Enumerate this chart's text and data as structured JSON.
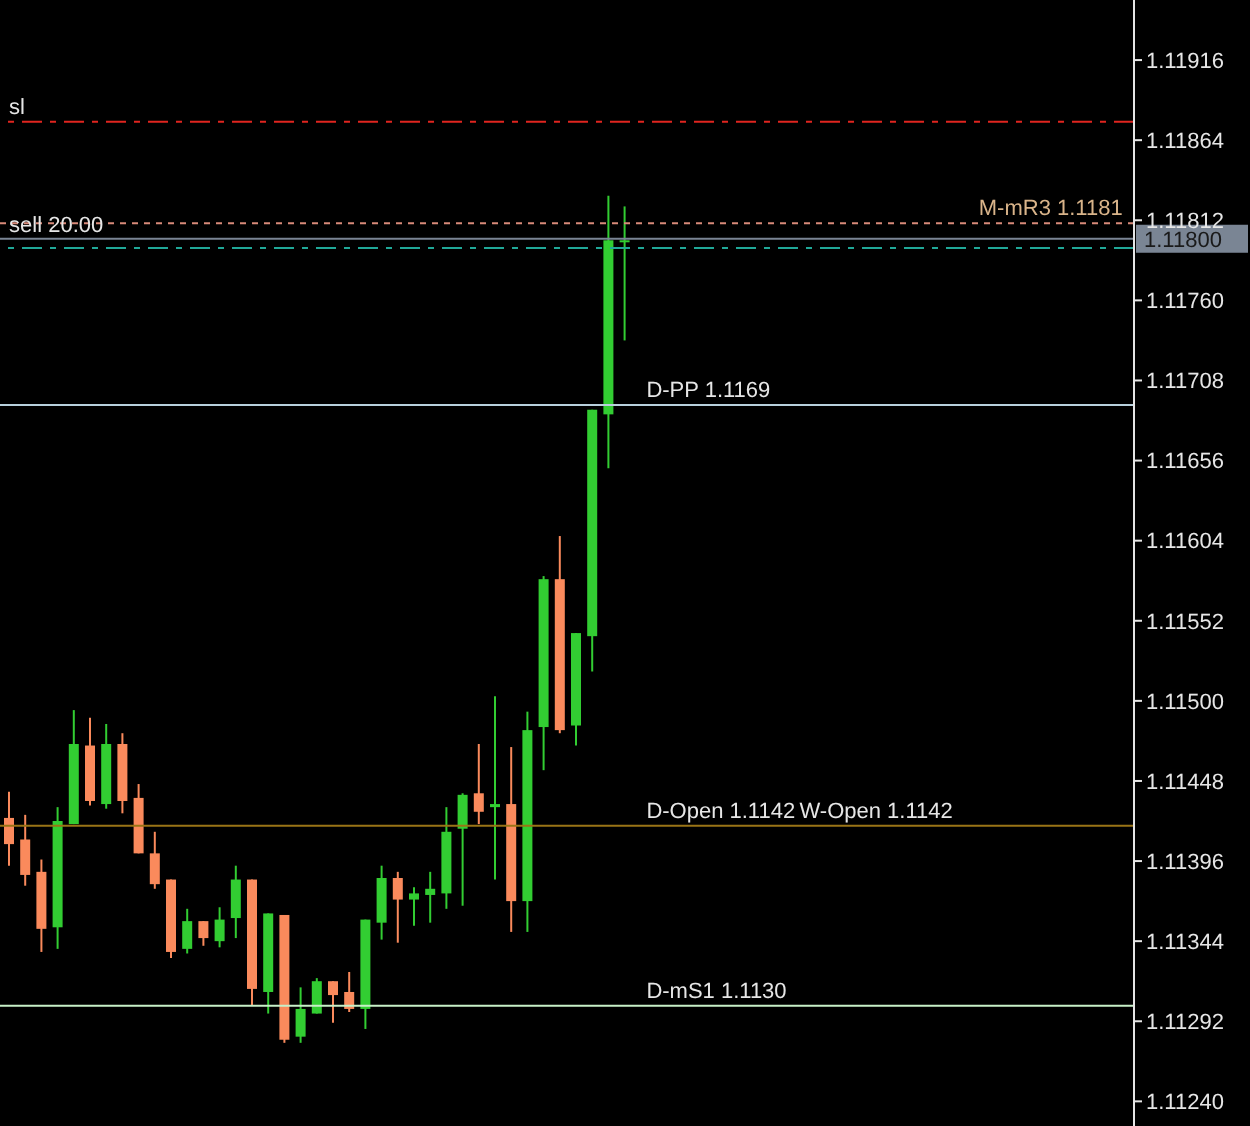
{
  "chart_data": {
    "type": "candlestick",
    "categories": [
      null,
      null,
      null,
      null,
      null,
      null,
      null,
      null,
      null,
      null,
      null,
      null,
      null,
      null,
      null,
      null,
      null,
      null,
      null,
      null,
      null,
      null,
      null,
      null,
      null,
      null,
      null,
      null,
      null,
      null,
      null,
      null,
      null,
      null,
      null,
      null,
      null,
      null,
      null,
      null,
      null,
      null,
      null,
      null,
      null,
      null,
      null,
      null,
      null,
      null,
      null,
      null,
      null,
      null,
      null,
      null,
      null,
      null,
      null,
      null,
      null,
      null,
      null,
      null,
      null,
      null,
      null,
      null,
      null,
      null
    ],
    "ohlc": [
      [
        1.11424,
        1.11441,
        1.11393,
        1.11407
      ],
      [
        1.1141,
        1.11426,
        1.1138,
        1.11387
      ],
      [
        1.11389,
        1.11397,
        1.11337,
        1.11352
      ],
      [
        1.11353,
        1.11431,
        1.11339,
        1.11422
      ],
      [
        1.1142,
        1.11494,
        1.1142,
        1.11472
      ],
      [
        1.11471,
        1.11489,
        1.11432,
        1.11435
      ],
      [
        1.11433,
        1.11485,
        1.1143,
        1.11472
      ],
      [
        1.11472,
        1.11479,
        1.11427,
        1.11435
      ],
      [
        1.11437,
        1.11446,
        1.11401,
        1.11401
      ],
      [
        1.11401,
        1.11415,
        1.11378,
        1.11381
      ],
      [
        1.11384,
        1.11384,
        1.11333,
        1.11337
      ],
      [
        1.11339,
        1.11365,
        1.11336,
        1.11357
      ],
      [
        1.11357,
        1.11357,
        1.11341,
        1.11346
      ],
      [
        1.11344,
        1.11366,
        1.1134,
        1.11358
      ],
      [
        1.11359,
        1.11393,
        1.11346,
        1.11384
      ],
      [
        1.11384,
        1.11384,
        1.11302,
        1.11313
      ],
      [
        1.11311,
        1.11362,
        1.11297,
        1.11362
      ],
      [
        1.11361,
        1.11361,
        1.11278,
        1.1128
      ],
      [
        1.11282,
        1.11314,
        1.11278,
        1.113
      ],
      [
        1.11297,
        1.1132,
        1.11297,
        1.11318
      ],
      [
        1.11318,
        1.11318,
        1.11291,
        1.11309
      ],
      [
        1.11311,
        1.11324,
        1.11298,
        1.113
      ],
      [
        1.113,
        1.11358,
        1.11287,
        1.11358
      ],
      [
        1.11356,
        1.11393,
        1.11345,
        1.11385
      ],
      [
        1.11385,
        1.11389,
        1.11343,
        1.11371
      ],
      [
        1.11371,
        1.11379,
        1.11354,
        1.11375
      ],
      [
        1.11374,
        1.11389,
        1.11356,
        1.11378
      ],
      [
        1.11375,
        1.11431,
        1.11365,
        1.11415
      ],
      [
        1.11417,
        1.1144,
        1.11367,
        1.11439
      ],
      [
        1.1144,
        1.11472,
        1.1142,
        1.11428
      ],
      [
        1.11431,
        1.11503,
        1.11384,
        1.11433
      ],
      [
        1.11433,
        1.1147,
        1.1135,
        1.1137
      ],
      [
        1.1137,
        1.11493,
        1.1135,
        1.11481
      ],
      [
        1.11483,
        1.11581,
        1.11455,
        1.11579
      ],
      [
        1.11579,
        1.11607,
        1.11479,
        1.11481
      ],
      [
        1.11484,
        1.11544,
        1.11471,
        1.11544
      ],
      [
        1.11542,
        1.11689,
        1.11519,
        1.11689
      ],
      [
        1.11686,
        1.11828,
        1.11651,
        1.11799
      ],
      [
        1.11798,
        1.11821,
        1.11734,
        1.11799
      ],
      null,
      null,
      null,
      null,
      null,
      null,
      null,
      null,
      null,
      null,
      null,
      null,
      null,
      null,
      null,
      null,
      null,
      null,
      null,
      null,
      null,
      null,
      null,
      null,
      null,
      null,
      null,
      null,
      null,
      null,
      null
    ],
    "colors": [
      "#fa8a5c",
      "#fa8a5c",
      "#fa8a5c",
      "#32cd32",
      "#32cd32",
      "#fa8a5c",
      "#32cd32",
      "#fa8a5c",
      "#fa8a5c",
      "#fa8a5c",
      "#fa8a5c",
      "#32cd32",
      "#fa8a5c",
      "#32cd32",
      "#32cd32",
      "#fa8a5c",
      "#32cd32",
      "#fa8a5c",
      "#32cd32",
      "#32cd32",
      "#fa8a5c",
      "#fa8a5c",
      "#32cd32",
      "#32cd32",
      "#fa8a5c",
      "#32cd32",
      "#32cd32",
      "#32cd32",
      "#32cd32",
      "#fa8a5c",
      "#32cd32",
      "#fa8a5c",
      "#32cd32",
      "#32cd32",
      "#fa8a5c",
      "#32cd32",
      "#32cd32",
      "#32cd32",
      "#32cd32",
      null,
      null,
      null,
      null,
      null,
      null,
      null,
      null,
      null,
      null,
      null,
      null,
      null,
      null,
      null,
      null,
      null,
      null,
      null,
      null,
      null,
      null,
      null,
      null,
      null,
      null,
      null,
      null,
      null,
      null,
      null
    ],
    "ylim": [
      1.11224,
      1.11955
    ],
    "yticks": [
      {
        "value": 1.11916,
        "label": "1.11916"
      },
      {
        "value": 1.11864,
        "label": "1.11864"
      },
      {
        "value": 1.11812,
        "label": "1.11812"
      },
      {
        "value": 1.1176,
        "label": "1.11760"
      },
      {
        "value": 1.11708,
        "label": "1.11708"
      },
      {
        "value": 1.11656,
        "label": "1.11656"
      },
      {
        "value": 1.11604,
        "label": "1.11604"
      },
      {
        "value": 1.11552,
        "label": "1.11552"
      },
      {
        "value": 1.115,
        "label": "1.11500"
      },
      {
        "value": 1.11448,
        "label": "1.11448"
      },
      {
        "value": 1.11396,
        "label": "1.11396"
      },
      {
        "value": 1.11344,
        "label": "1.11344"
      },
      {
        "value": 1.11292,
        "label": "1.11292"
      },
      {
        "value": 1.1124,
        "label": "1.11240"
      }
    ],
    "tick_labels": "y",
    "ref_lines": [
      {
        "axis": "y",
        "value": 1.11876,
        "label": "sl",
        "color": "#e0251f",
        "line_style": "dashed"
      },
      {
        "axis": "y",
        "value": 1.1181,
        "label": "M-mR3 1.1181",
        "color": "#d98a7a",
        "line_style": "dotted"
      },
      {
        "axis": "y",
        "value": 1.118,
        "label": "1.11800",
        "color": "#7a8594",
        "line_style": "solid"
      },
      {
        "axis": "y",
        "value": 1.11794,
        "label": "sell 20.00",
        "color": "#20a898",
        "line_style": "dashed"
      },
      {
        "axis": "y",
        "value": 1.11692,
        "label": "D-PP 1.1169",
        "color": "#b8d0dc",
        "line_style": "solid"
      },
      {
        "axis": "y",
        "value": 1.11419,
        "label": "D-Open 1.1142",
        "color": "#9a7416",
        "line_style": "solid"
      },
      {
        "axis": "y",
        "value": 1.11302,
        "label": "D-mS1 1.1130",
        "color": "#c8f0c8",
        "line_style": "solid"
      }
    ],
    "annotations": [
      {
        "text": "W-Open 1.1142",
        "y": 1.11419
      }
    ]
  }
}
